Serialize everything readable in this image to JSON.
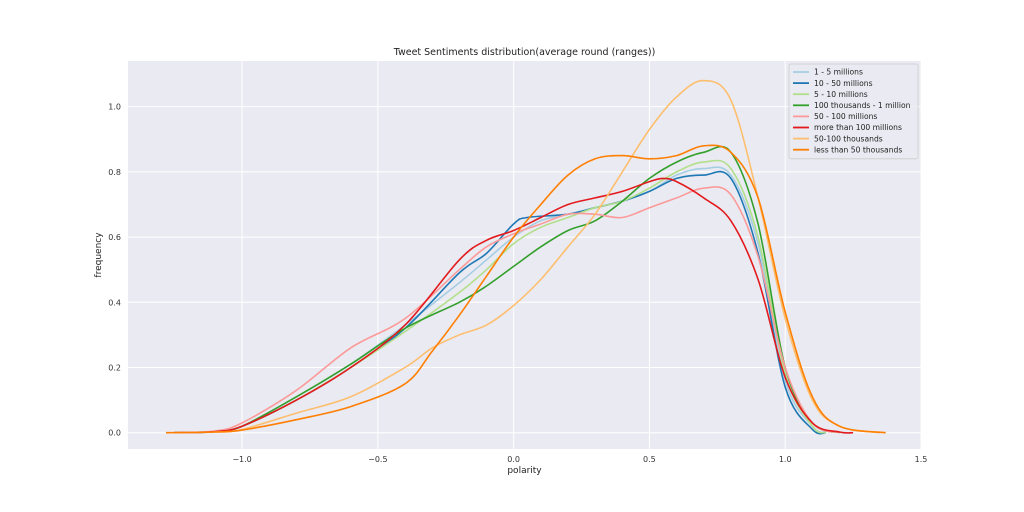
{
  "chart_data": {
    "type": "line",
    "title": "Tweet Sentiments distribution(average round (ranges))",
    "xlabel": "polarity",
    "ylabel": "frequency",
    "xlim": [
      -1.42,
      1.5
    ],
    "ylim": [
      -0.05,
      1.14
    ],
    "xticks": [
      -1.0,
      -0.5,
      0.0,
      0.5,
      1.0,
      1.5
    ],
    "xtick_labels": [
      "−1.0",
      "−0.5",
      "0.0",
      "0.5",
      "1.0",
      "1.5"
    ],
    "yticks": [
      0.0,
      0.2,
      0.4,
      0.6,
      0.8,
      1.0
    ],
    "ytick_labels": [
      "0.0",
      "0.2",
      "0.4",
      "0.6",
      "0.8",
      "1.0"
    ],
    "grid": true,
    "legend_position": "top-right",
    "series": [
      {
        "name": "1 - 5 millions",
        "color": "#a6cee3",
        "points": [
          [
            -1.25,
            0
          ],
          [
            -1.1,
            0.003
          ],
          [
            -1.0,
            0.02
          ],
          [
            -0.8,
            0.11
          ],
          [
            -0.6,
            0.21
          ],
          [
            -0.4,
            0.33
          ],
          [
            -0.2,
            0.46
          ],
          [
            -0.1,
            0.53
          ],
          [
            0.0,
            0.6
          ],
          [
            0.1,
            0.65
          ],
          [
            0.2,
            0.67
          ],
          [
            0.3,
            0.69
          ],
          [
            0.4,
            0.71
          ],
          [
            0.5,
            0.74
          ],
          [
            0.6,
            0.79
          ],
          [
            0.7,
            0.81
          ],
          [
            0.8,
            0.79
          ],
          [
            0.9,
            0.58
          ],
          [
            1.0,
            0.16
          ],
          [
            1.1,
            0.02
          ],
          [
            1.15,
            0.0
          ]
        ]
      },
      {
        "name": "10 - 50 millions",
        "color": "#1f78b4",
        "points": [
          [
            -1.25,
            0
          ],
          [
            -1.1,
            0.004
          ],
          [
            -1.0,
            0.02
          ],
          [
            -0.8,
            0.1
          ],
          [
            -0.6,
            0.2
          ],
          [
            -0.4,
            0.32
          ],
          [
            -0.2,
            0.49
          ],
          [
            -0.1,
            0.55
          ],
          [
            0.0,
            0.64
          ],
          [
            0.05,
            0.66
          ],
          [
            0.2,
            0.67
          ],
          [
            0.3,
            0.69
          ],
          [
            0.4,
            0.71
          ],
          [
            0.5,
            0.74
          ],
          [
            0.6,
            0.78
          ],
          [
            0.7,
            0.79
          ],
          [
            0.8,
            0.78
          ],
          [
            0.9,
            0.55
          ],
          [
            1.0,
            0.14
          ],
          [
            1.1,
            0.01
          ],
          [
            1.15,
            0.0
          ]
        ]
      },
      {
        "name": "5 - 10 millions",
        "color": "#b2df8a",
        "points": [
          [
            -1.25,
            0
          ],
          [
            -1.1,
            0.003
          ],
          [
            -1.0,
            0.02
          ],
          [
            -0.8,
            0.1
          ],
          [
            -0.6,
            0.2
          ],
          [
            -0.4,
            0.31
          ],
          [
            -0.2,
            0.43
          ],
          [
            -0.1,
            0.5
          ],
          [
            0.0,
            0.58
          ],
          [
            0.1,
            0.63
          ],
          [
            0.2,
            0.66
          ],
          [
            0.3,
            0.69
          ],
          [
            0.4,
            0.71
          ],
          [
            0.5,
            0.75
          ],
          [
            0.6,
            0.8
          ],
          [
            0.7,
            0.83
          ],
          [
            0.8,
            0.81
          ],
          [
            0.9,
            0.6
          ],
          [
            1.0,
            0.18
          ],
          [
            1.1,
            0.02
          ],
          [
            1.15,
            0.0
          ]
        ]
      },
      {
        "name": "100 thousands - 1 million",
        "color": "#33a02c",
        "points": [
          [
            -1.25,
            0
          ],
          [
            -1.1,
            0.004
          ],
          [
            -1.0,
            0.02
          ],
          [
            -0.8,
            0.11
          ],
          [
            -0.6,
            0.21
          ],
          [
            -0.4,
            0.32
          ],
          [
            -0.2,
            0.4
          ],
          [
            -0.1,
            0.45
          ],
          [
            0.0,
            0.51
          ],
          [
            0.1,
            0.57
          ],
          [
            0.2,
            0.62
          ],
          [
            0.3,
            0.65
          ],
          [
            0.4,
            0.71
          ],
          [
            0.5,
            0.78
          ],
          [
            0.6,
            0.83
          ],
          [
            0.7,
            0.86
          ],
          [
            0.8,
            0.86
          ],
          [
            0.9,
            0.64
          ],
          [
            1.0,
            0.2
          ],
          [
            1.1,
            0.03
          ],
          [
            1.2,
            0.0
          ]
        ]
      },
      {
        "name": "50 - 100 millions",
        "color": "#fb9a99",
        "points": [
          [
            -1.25,
            0
          ],
          [
            -1.1,
            0.005
          ],
          [
            -1.0,
            0.03
          ],
          [
            -0.8,
            0.13
          ],
          [
            -0.6,
            0.26
          ],
          [
            -0.4,
            0.35
          ],
          [
            -0.2,
            0.5
          ],
          [
            -0.1,
            0.57
          ],
          [
            0.0,
            0.61
          ],
          [
            0.1,
            0.64
          ],
          [
            0.2,
            0.67
          ],
          [
            0.3,
            0.67
          ],
          [
            0.4,
            0.66
          ],
          [
            0.5,
            0.69
          ],
          [
            0.6,
            0.72
          ],
          [
            0.7,
            0.75
          ],
          [
            0.8,
            0.73
          ],
          [
            0.9,
            0.54
          ],
          [
            1.0,
            0.2
          ],
          [
            1.1,
            0.03
          ],
          [
            1.2,
            0.0
          ]
        ]
      },
      {
        "name": "more than 100 millions",
        "color": "#e31a1c",
        "points": [
          [
            -1.25,
            0
          ],
          [
            -1.1,
            0.003
          ],
          [
            -1.0,
            0.02
          ],
          [
            -0.8,
            0.1
          ],
          [
            -0.6,
            0.2
          ],
          [
            -0.4,
            0.33
          ],
          [
            -0.2,
            0.53
          ],
          [
            -0.1,
            0.59
          ],
          [
            0.0,
            0.62
          ],
          [
            0.1,
            0.66
          ],
          [
            0.2,
            0.7
          ],
          [
            0.3,
            0.72
          ],
          [
            0.4,
            0.74
          ],
          [
            0.5,
            0.77
          ],
          [
            0.55,
            0.78
          ],
          [
            0.6,
            0.77
          ],
          [
            0.7,
            0.72
          ],
          [
            0.8,
            0.65
          ],
          [
            0.9,
            0.47
          ],
          [
            1.0,
            0.17
          ],
          [
            1.1,
            0.03
          ],
          [
            1.2,
            0.002
          ],
          [
            1.25,
            0.0
          ]
        ]
      },
      {
        "name": "50-100 thousands",
        "color": "#fdbf6f",
        "points": [
          [
            -1.25,
            0
          ],
          [
            -1.1,
            0.002
          ],
          [
            -1.0,
            0.01
          ],
          [
            -0.8,
            0.06
          ],
          [
            -0.6,
            0.11
          ],
          [
            -0.4,
            0.2
          ],
          [
            -0.3,
            0.26
          ],
          [
            -0.2,
            0.3
          ],
          [
            -0.1,
            0.33
          ],
          [
            0.0,
            0.39
          ],
          [
            0.1,
            0.47
          ],
          [
            0.2,
            0.57
          ],
          [
            0.3,
            0.67
          ],
          [
            0.4,
            0.8
          ],
          [
            0.5,
            0.93
          ],
          [
            0.6,
            1.03
          ],
          [
            0.7,
            1.08
          ],
          [
            0.8,
            1.02
          ],
          [
            0.9,
            0.72
          ],
          [
            1.0,
            0.35
          ],
          [
            1.1,
            0.1
          ],
          [
            1.2,
            0.02
          ],
          [
            1.35,
            0.0
          ]
        ]
      },
      {
        "name": "less than 50 thousands",
        "color": "#ff7f00",
        "points": [
          [
            -1.28,
            0
          ],
          [
            -1.1,
            0.002
          ],
          [
            -1.0,
            0.008
          ],
          [
            -0.8,
            0.04
          ],
          [
            -0.6,
            0.08
          ],
          [
            -0.4,
            0.15
          ],
          [
            -0.3,
            0.25
          ],
          [
            -0.2,
            0.36
          ],
          [
            -0.1,
            0.48
          ],
          [
            0.0,
            0.6
          ],
          [
            0.1,
            0.7
          ],
          [
            0.2,
            0.79
          ],
          [
            0.3,
            0.84
          ],
          [
            0.4,
            0.85
          ],
          [
            0.5,
            0.84
          ],
          [
            0.6,
            0.85
          ],
          [
            0.7,
            0.88
          ],
          [
            0.8,
            0.86
          ],
          [
            0.9,
            0.72
          ],
          [
            1.0,
            0.37
          ],
          [
            1.1,
            0.11
          ],
          [
            1.2,
            0.02
          ],
          [
            1.37,
            0.0
          ]
        ]
      }
    ]
  }
}
